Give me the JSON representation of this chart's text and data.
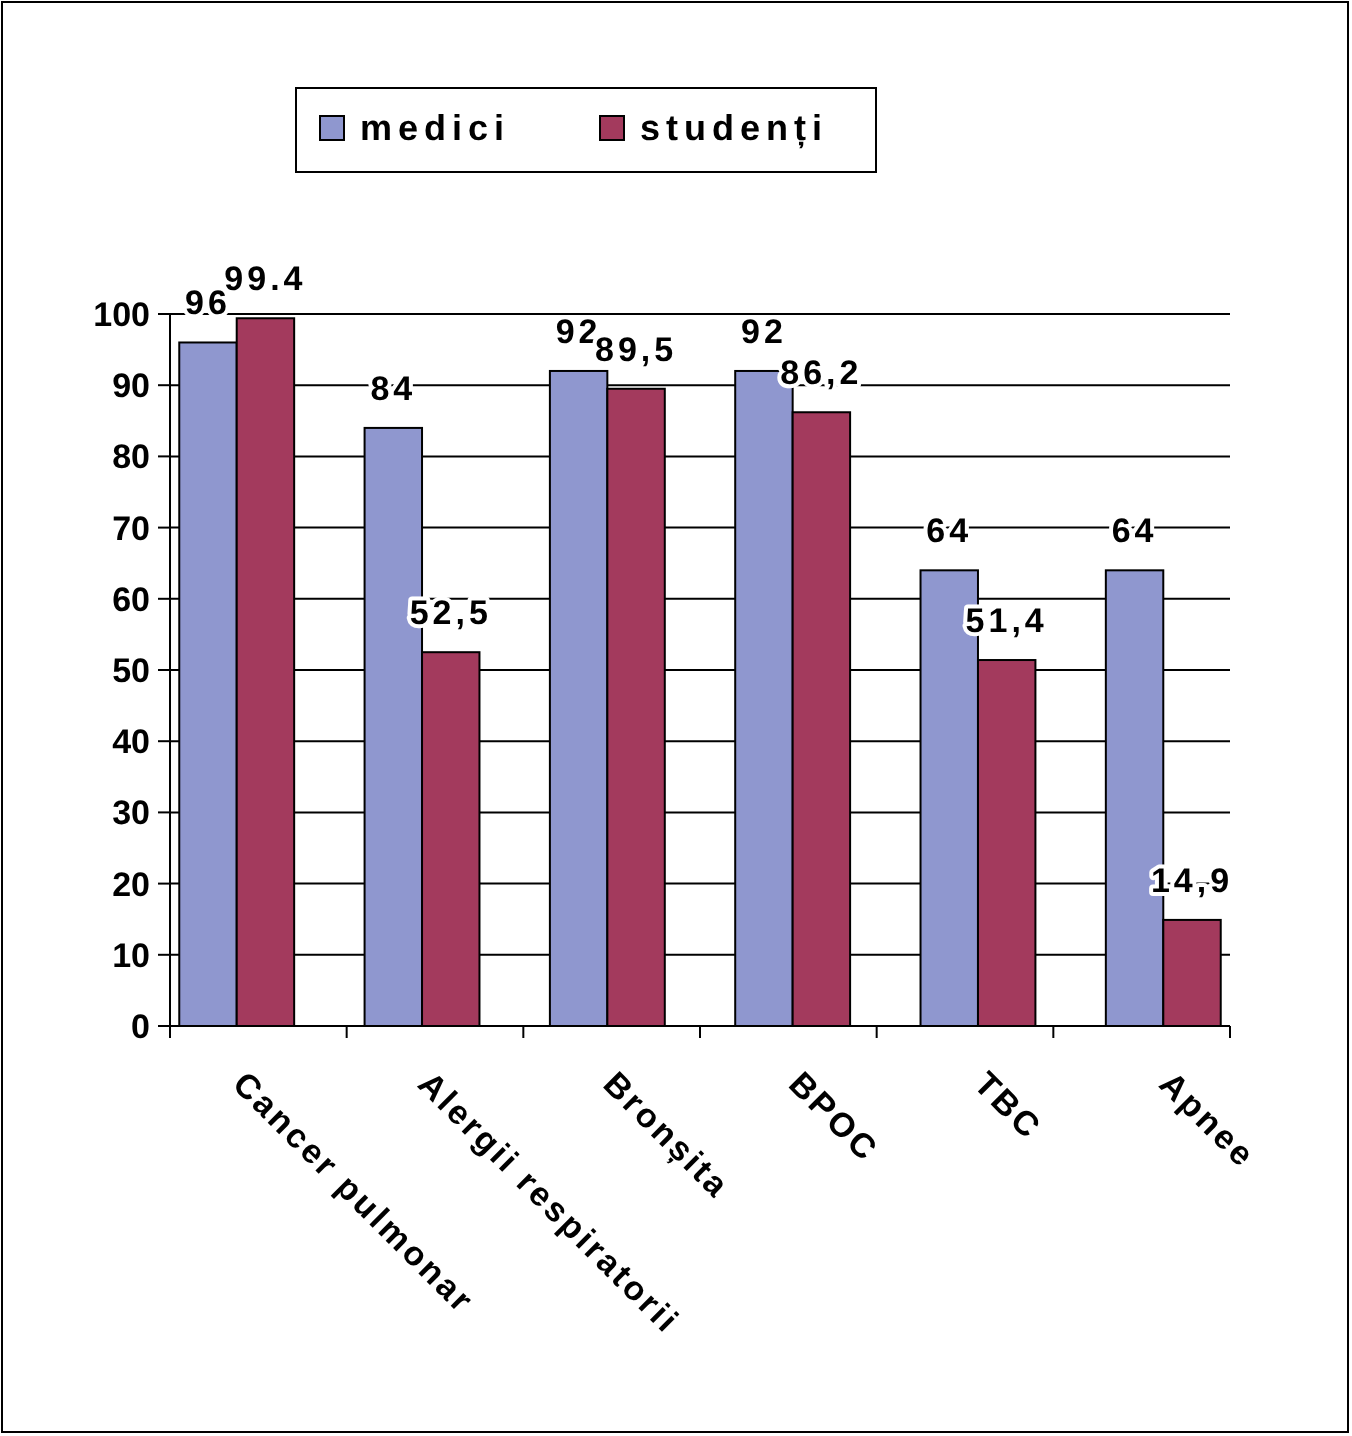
{
  "chart_data": {
    "type": "bar",
    "categories": [
      "Cancer pulmonar",
      "Alergii respiratorii",
      "Bronșita",
      "BPOC",
      "TBC",
      "Apnee"
    ],
    "series": [
      {
        "name": "medici",
        "color": "#8f97cf",
        "values": [
          96,
          84,
          92,
          92,
          64,
          64
        ],
        "value_labels": [
          "96",
          "84",
          "92",
          "92",
          "64",
          "64"
        ]
      },
      {
        "name": "studenți",
        "color": "#a33a5d",
        "values": [
          99.4,
          52.5,
          89.5,
          86.2,
          51.4,
          14.9
        ],
        "value_labels": [
          "99.4",
          "52,5",
          "89,5",
          "86,2",
          "51,4",
          "14,9"
        ]
      }
    ],
    "ylim": [
      0,
      100
    ],
    "yticks": [
      0,
      10,
      20,
      30,
      40,
      50,
      60,
      70,
      80,
      90,
      100
    ],
    "grid": "y",
    "legend": "top"
  }
}
